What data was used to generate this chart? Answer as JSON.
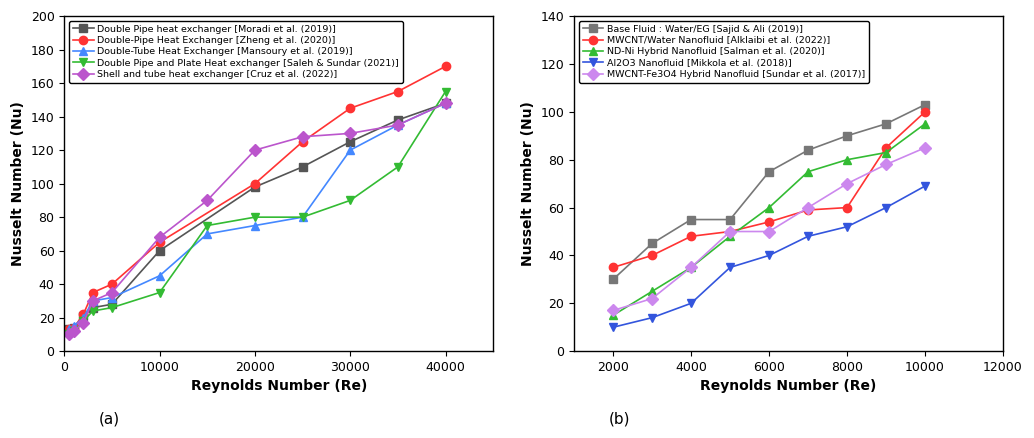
{
  "plot_a": {
    "xlabel": "Reynolds Number (Re)",
    "ylabel": "Nusselt Number (Nu)",
    "xlim": [
      0,
      45000
    ],
    "ylim": [
      0,
      200
    ],
    "xticks": [
      0,
      10000,
      20000,
      30000,
      40000
    ],
    "yticks": [
      0,
      20,
      40,
      60,
      80,
      100,
      120,
      140,
      160,
      180,
      200
    ],
    "label": "(a)",
    "series": [
      {
        "label": "Double Pipe heat exchanger [Moradi et al. (2019)]",
        "color": "#555555",
        "marker": "s",
        "x": [
          500,
          1000,
          2000,
          3000,
          5000,
          10000,
          20000,
          25000,
          30000,
          35000,
          40000
        ],
        "y": [
          13,
          14,
          21,
          26,
          28,
          60,
          98,
          110,
          125,
          138,
          148
        ]
      },
      {
        "label": "Double-Pipe Heat Exchanger [Zheng et al. (2020)]",
        "color": "#ff3333",
        "marker": "o",
        "x": [
          500,
          1000,
          2000,
          3000,
          5000,
          10000,
          20000,
          25000,
          30000,
          35000,
          40000
        ],
        "y": [
          13,
          14,
          22,
          35,
          40,
          65,
          100,
          125,
          145,
          155,
          170
        ]
      },
      {
        "label": "Double-Tube Heat Exchanger [Mansoury et al. (2019)]",
        "color": "#4488ff",
        "marker": "^",
        "x": [
          500,
          1000,
          2000,
          3000,
          5000,
          10000,
          15000,
          20000,
          25000,
          30000,
          35000,
          40000
        ],
        "y": [
          13,
          15,
          20,
          30,
          32,
          45,
          70,
          75,
          80,
          120,
          135,
          148
        ]
      },
      {
        "label": "Double Pipe and Plate Heat exchanger [Saleh & Sundar (2021)]",
        "color": "#33bb33",
        "marker": "v",
        "x": [
          500,
          1000,
          2000,
          3000,
          5000,
          10000,
          15000,
          20000,
          25000,
          30000,
          35000,
          40000
        ],
        "y": [
          10,
          12,
          18,
          24,
          26,
          35,
          75,
          80,
          80,
          90,
          110,
          155
        ]
      },
      {
        "label": "Shell and tube heat exchanger [Cruz et al. (2022)]",
        "color": "#bb55cc",
        "marker": "D",
        "x": [
          500,
          1000,
          2000,
          3000,
          5000,
          10000,
          15000,
          20000,
          25000,
          30000,
          35000,
          40000
        ],
        "y": [
          10,
          12,
          17,
          30,
          35,
          68,
          90,
          120,
          128,
          130,
          135,
          148
        ]
      }
    ]
  },
  "plot_b": {
    "xlabel": "Reynolds Number (Re)",
    "ylabel": "Nusselt Number (Nu)",
    "xlim": [
      1000,
      12000
    ],
    "ylim": [
      0,
      140
    ],
    "xticks": [
      2000,
      4000,
      6000,
      8000,
      10000,
      12000
    ],
    "yticks": [
      0,
      20,
      40,
      60,
      80,
      100,
      120,
      140
    ],
    "label": "(b)",
    "series": [
      {
        "label": "Base Fluid : Water/EG [Sajid & Ali (2019)]",
        "color": "#777777",
        "marker": "s",
        "x": [
          2000,
          3000,
          4000,
          5000,
          6000,
          7000,
          8000,
          9000,
          10000
        ],
        "y": [
          30,
          45,
          55,
          55,
          75,
          84,
          90,
          95,
          103
        ]
      },
      {
        "label": "MWCNT/Water Nanofluid [Alklaibi et al. (2022)]",
        "color": "#ff3333",
        "marker": "o",
        "x": [
          2000,
          3000,
          4000,
          5000,
          6000,
          7000,
          8000,
          9000,
          10000
        ],
        "y": [
          35,
          40,
          48,
          50,
          54,
          59,
          60,
          85,
          100
        ]
      },
      {
        "label": "ND-Ni Hybrid Nanofluid [Salman et al. (2020)]",
        "color": "#33bb33",
        "marker": "^",
        "x": [
          2000,
          3000,
          4000,
          5000,
          6000,
          7000,
          8000,
          9000,
          10000
        ],
        "y": [
          15,
          25,
          35,
          48,
          60,
          75,
          80,
          83,
          95
        ]
      },
      {
        "label": "Al2O3 Nanofluid [Mikkola et al. (2018)]",
        "color": "#3355dd",
        "marker": "v",
        "x": [
          2000,
          3000,
          4000,
          5000,
          6000,
          7000,
          8000,
          9000,
          10000
        ],
        "y": [
          10,
          14,
          20,
          35,
          40,
          48,
          52,
          60,
          69
        ]
      },
      {
        "label": "MWCNT-Fe3O4 Hybrid Nanofluid [Sundar et al. (2017)]",
        "color": "#cc88ee",
        "marker": "D",
        "x": [
          2000,
          3000,
          4000,
          5000,
          6000,
          7000,
          8000,
          9000,
          10000
        ],
        "y": [
          17,
          22,
          35,
          50,
          50,
          60,
          70,
          78,
          85
        ]
      }
    ]
  }
}
